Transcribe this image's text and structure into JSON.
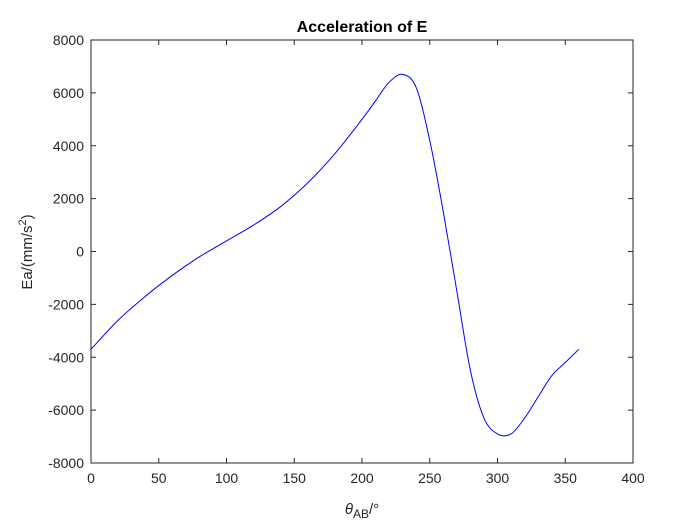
{
  "chart_data": {
    "type": "line",
    "title": "Acceleration of E",
    "xlabel": {
      "main": "θ",
      "sub": "AB",
      "suffix": "/°"
    },
    "ylabel": {
      "main": "Ea/(mm/s",
      "sup": "2",
      "suffix": ")"
    },
    "xlim": [
      0,
      400
    ],
    "ylim": [
      -8000,
      8000
    ],
    "xticks": [
      0,
      50,
      100,
      150,
      200,
      250,
      300,
      350,
      400
    ],
    "xtick_labels": [
      "0",
      "50",
      "100",
      "150",
      "200",
      "250",
      "300",
      "350",
      "400"
    ],
    "yticks": [
      -8000,
      -6000,
      -4000,
      -2000,
      0,
      2000,
      4000,
      6000,
      8000
    ],
    "ytick_labels": [
      "-8000",
      "-6000",
      "-4000",
      "-2000",
      "0",
      "2000",
      "4000",
      "6000",
      "8000"
    ],
    "grid": false,
    "box": true,
    "series": [
      {
        "color": "#0000ff",
        "x": [
          0,
          20,
          40,
          60,
          80,
          100,
          120,
          140,
          160,
          180,
          200,
          210,
          220,
          230,
          240,
          250,
          260,
          270,
          280,
          290,
          300,
          310,
          320,
          330,
          340,
          350,
          360
        ],
        "y": [
          -3700,
          -2600,
          -1700,
          -900,
          -200,
          400,
          1000,
          1700,
          2600,
          3700,
          5000,
          5700,
          6400,
          6700,
          6200,
          4200,
          1500,
          -1500,
          -4500,
          -6300,
          -6900,
          -6900,
          -6300,
          -5500,
          -4700,
          -4200,
          -3700
        ]
      }
    ],
    "colors": {
      "axes": "#262626",
      "line": "#0000ff",
      "background": "#ffffff"
    }
  }
}
